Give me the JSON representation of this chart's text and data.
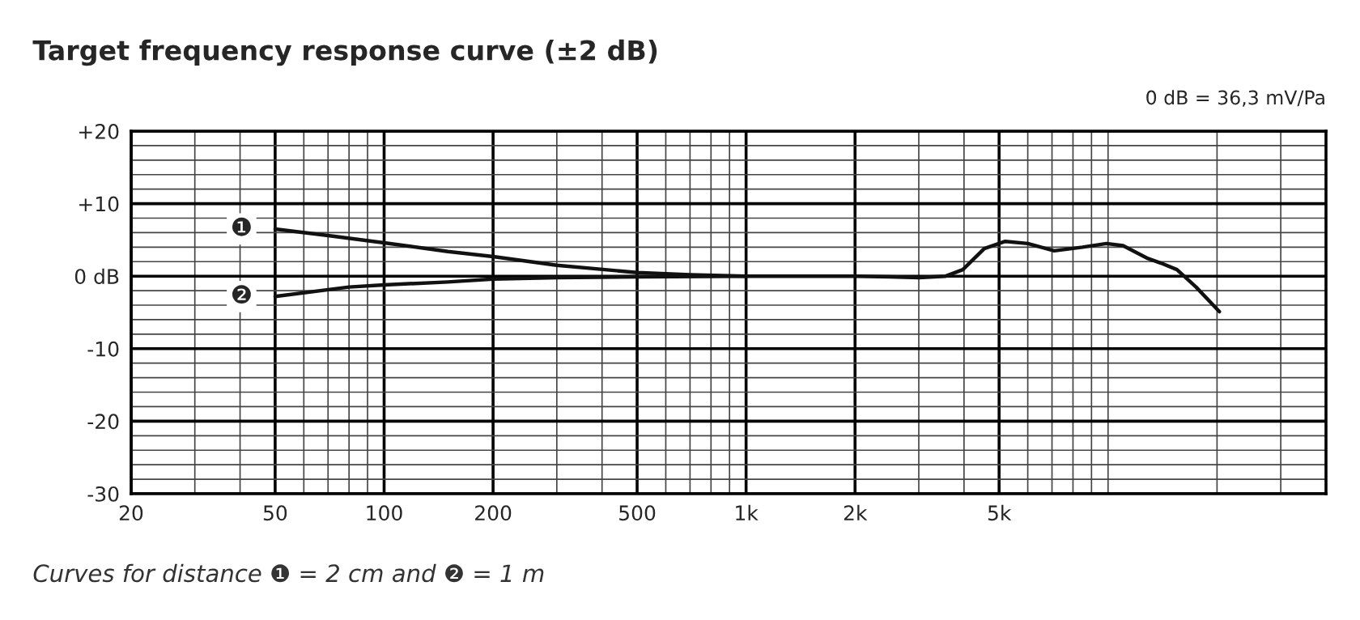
{
  "chart_data": {
    "type": "line",
    "title": "Target frequency response curve (±2 dB)",
    "annotations": [
      "0 dB = 36,3 mV/Pa",
      "Curves for distance ❶ = 2 cm and ❷ = 1 m"
    ],
    "log": "x",
    "grid": true,
    "legend": false,
    "marker": "none",
    "line_style": "solid",
    "xlim": [
      20,
      40000
    ],
    "xticks": [
      20,
      50,
      100,
      200,
      500,
      {
        "value": 1000,
        "label": "1k"
      },
      {
        "value": 2000,
        "label": "2k"
      },
      {
        "value": 5000,
        "label": "5k"
      }
    ],
    "ylim": [
      -30,
      20
    ],
    "yticks": [
      {
        "value": 20,
        "label": "+20"
      },
      {
        "value": 10,
        "label": "+10"
      },
      {
        "value": 0,
        "label": "0 dB"
      },
      -10,
      -20,
      -30
    ],
    "series": [
      {
        "name": "❶",
        "color": "#111111",
        "x": [
          50,
          70,
          100,
          150,
          200,
          300,
          500,
          700,
          1000
        ],
        "values": [
          6.5,
          5.6,
          4.6,
          3.4,
          2.7,
          1.5,
          0.5,
          0.2,
          0
        ]
      },
      {
        "name": "❷",
        "color": "#111111",
        "x": [
          50,
          80,
          100,
          150,
          200,
          300,
          500,
          1000,
          2000,
          2500,
          3000,
          3560,
          3970,
          4550,
          5200,
          6000,
          7100,
          8500,
          9900,
          11000,
          12800,
          14000,
          15500,
          17500,
          20300
        ],
        "values": [
          -2.8,
          -1.5,
          -1.2,
          -0.8,
          -0.4,
          -0.2,
          -0.1,
          0,
          0,
          -0.1,
          -0.2,
          0,
          0.9,
          3.8,
          4.8,
          4.5,
          3.5,
          4.0,
          4.5,
          4.2,
          2.5,
          1.8,
          0.9,
          -1.5,
          -4.9
        ]
      }
    ]
  }
}
